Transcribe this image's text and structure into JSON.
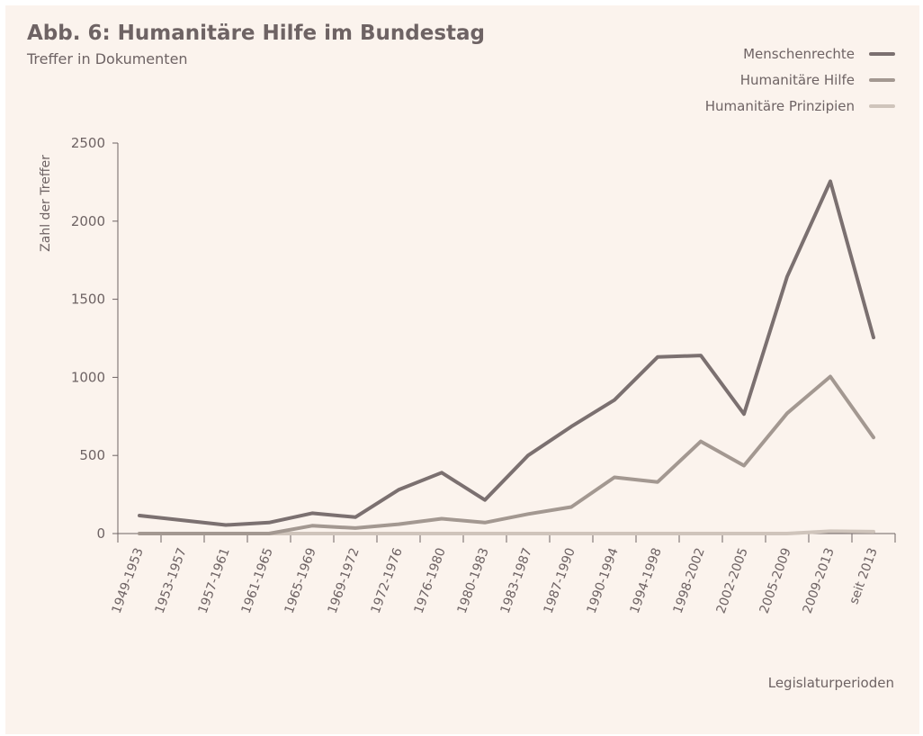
{
  "header": {
    "title": "Abb. 6: Humanitäre Hilfe im Bundestag",
    "subtitle": "Treffer in Dokumenten"
  },
  "chart_data": {
    "type": "line",
    "ylabel": "Zahl der Treffer",
    "xlabel": "Legislaturperioden",
    "ylim": [
      0,
      2500
    ],
    "yticks": [
      0,
      500,
      1000,
      1500,
      2000,
      2500
    ],
    "grid": false,
    "legend_position": "top-right",
    "categories": [
      "1949-1953",
      "1953-1957",
      "1957-1961",
      "1961-1965",
      "1965-1969",
      "1969-1972",
      "1972-1976",
      "1976-1980",
      "1980-1983",
      "1983-1987",
      "1987-1990",
      "1990-1994",
      "1994-1998",
      "1998-2002",
      "2002-2005",
      "2005-2009",
      "2009-2013",
      "seit 2013"
    ],
    "series": [
      {
        "name": "Menschenrechte",
        "color": "#7b7070",
        "values": [
          115,
          85,
          55,
          70,
          130,
          105,
          280,
          390,
          215,
          500,
          685,
          855,
          1130,
          1140,
          765,
          1645,
          2255,
          1255
        ]
      },
      {
        "name": "Humanitäre Hilfe",
        "color": "#a39891",
        "values": [
          0,
          0,
          0,
          0,
          50,
          35,
          60,
          95,
          70,
          125,
          170,
          360,
          330,
          590,
          435,
          770,
          1005,
          615
        ]
      },
      {
        "name": "Humanitäre Prinzipien",
        "color": "#cfc4bb",
        "values": [
          0,
          0,
          0,
          0,
          0,
          0,
          0,
          0,
          0,
          0,
          0,
          0,
          0,
          0,
          0,
          0,
          15,
          12
        ]
      }
    ]
  }
}
